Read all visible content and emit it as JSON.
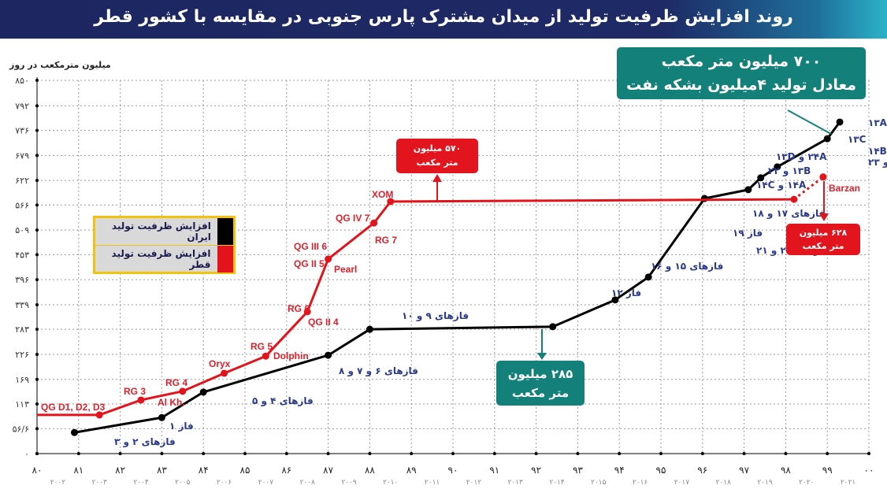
{
  "title": "روند افزایش ظرفیت تولید از میدان مشترک پارس جنوبی در مقایسه با کشور قطر",
  "chart_data": {
    "type": "line",
    "title": "روند افزایش ظرفیت تولید از میدان مشترک پارس جنوبی در مقایسه با کشور قطر",
    "ylabel": "میلیون مترمکعب در روز",
    "xlabel": "",
    "ylim": [
      0,
      850
    ],
    "xlim": [
      80,
      100
    ],
    "grid": true,
    "yticks": [
      "۰",
      "۵۶/۶",
      "۱۱۳",
      "۱۶۹",
      "۲۲۶",
      "۲۸۳",
      "۳۳۹",
      "۳۹۶",
      "۴۵۳",
      "۵۰۹",
      "۵۶۶",
      "۶۲۲",
      "۶۷۹",
      "۷۳۶",
      "۷۹۲",
      "۸۵۰"
    ],
    "ytick_values": [
      0,
      56.6,
      113,
      169,
      226,
      283,
      339,
      396,
      453,
      509,
      566,
      622,
      679,
      736,
      792,
      850
    ],
    "xticks": [
      "۸۰",
      "۸۱",
      "۸۲",
      "۸۳",
      "۸۴",
      "۸۵",
      "۸۶",
      "۸۷",
      "۸۸",
      "۸۹",
      "۹۰",
      "۹۱",
      "۹۲",
      "۹۳",
      "۹۴",
      "۹۵",
      "۹۶",
      "۹۷",
      "۹۸",
      "۹۹",
      "۰۰"
    ],
    "xticks_gregorian": [
      "۲۰۰۲",
      "۲۰۰۳",
      "۲۰۰۴",
      "۲۰۰۵",
      "۲۰۰۶",
      "۲۰۰۷",
      "۲۰۰۸",
      "۲۰۰۹",
      "۲۰۱۰",
      "۲۰۱۱",
      "۲۰۱۲",
      "۲۰۱۳",
      "۲۰۱۴",
      "۲۰۱۵",
      "۲۰۱۶",
      "۲۰۱۷",
      "۲۰۱۸",
      "۲۰۱۹",
      "۲۰۲۰",
      "۲۰۲۱"
    ],
    "legend": [
      "افزایش ظرفیت تولید ایران",
      "افزایش ظرفیت تولید قطر"
    ],
    "legend_position": "left",
    "colors": {
      "iran": "#000000",
      "qatar": "#e3131b",
      "teal": "#14807a"
    },
    "series": [
      {
        "name": "افزایش ظرفیت تولید ایران",
        "points": [
          {
            "x": 80.9,
            "y": 48,
            "label": "فازهای ۲ و ۳"
          },
          {
            "x": 83.0,
            "y": 82,
            "label": "فاز ۱"
          },
          {
            "x": 84.0,
            "y": 140,
            "label": "فازهای ۴ و ۵"
          },
          {
            "x": 87.0,
            "y": 224,
            "label": "فازهای ۶ و ۷ و ۸"
          },
          {
            "x": 88.0,
            "y": 283,
            "label": "فازهای ۹ و ۱۰"
          },
          {
            "x": 92.4,
            "y": 289,
            "label": ""
          },
          {
            "x": 93.9,
            "y": 350,
            "label": "فاز ۱۲"
          },
          {
            "x": 94.7,
            "y": 402,
            "label": "فازهای ۱۵ و ۱۶"
          },
          {
            "x": 96.05,
            "y": 581,
            "label": "فازهای ۱۷ و ۱۸"
          },
          {
            "x": 97.1,
            "y": 601,
            "label": "۱۴A و ۱۴C"
          },
          {
            "x": 97.4,
            "y": 628,
            "label": "۱۳B و ۲۲"
          },
          {
            "x": 97.8,
            "y": 653,
            "label": "۲۴A و ۱۳D"
          },
          {
            "x": 99.0,
            "y": 717,
            "label": "۱۳C"
          },
          {
            "x": 99.3,
            "y": 755,
            "label": "۱۳A"
          }
        ]
      },
      {
        "name": "افزایش ظرفیت تولید قطر",
        "points": [
          {
            "x": 80.0,
            "y": 88,
            "label": ""
          },
          {
            "x": 81.5,
            "y": 88,
            "label": "QG D1, D2, D3"
          },
          {
            "x": 82.5,
            "y": 122,
            "label": "RG 3"
          },
          {
            "x": 83.5,
            "y": 142,
            "label": "RG 4"
          },
          {
            "x": 84.5,
            "y": 183,
            "label": "Oryx"
          },
          {
            "x": 85.5,
            "y": 222,
            "label": "RG 5"
          },
          {
            "x": 86.5,
            "y": 323,
            "label": "RG 6"
          },
          {
            "x": 87.0,
            "y": 443,
            "label": "QG II 5"
          },
          {
            "x": 88.1,
            "y": 525,
            "label": "QG IV 7"
          },
          {
            "x": 88.5,
            "y": 574,
            "label": "XOM"
          },
          {
            "x": 98.2,
            "y": 579,
            "label": ""
          },
          {
            "x": 98.9,
            "y": 630,
            "label": "Barzan",
            "dotted": true
          }
        ]
      }
    ],
    "extra_labels": {
      "qatar": [
        "Al Kh.",
        "Dolphin",
        "QG II 4",
        "QG III 6",
        "Pearl",
        "RG 7"
      ],
      "iran": [
        "فاز ۱۹",
        "فازهای ۲۰ و ۲۱",
        "۱۴D و ۱۴B",
        "۲۴B و ۲۳"
      ]
    },
    "annotations": {
      "iran_700": {
        "line1": "۷۰۰ میلیون متر مکعب",
        "line2": "معادل تولید ۴میلیون بشکه نفت"
      },
      "iran_285": {
        "line1": "۲۸۵ میلیون",
        "line2": "متر مکعب"
      },
      "qatar_570": {
        "line1": "۵۷۰ میلیون",
        "line2": "متر مکعب"
      },
      "qatar_628": {
        "line1": "۶۲۸ میلیون",
        "line2": "متر مکعب"
      }
    }
  }
}
